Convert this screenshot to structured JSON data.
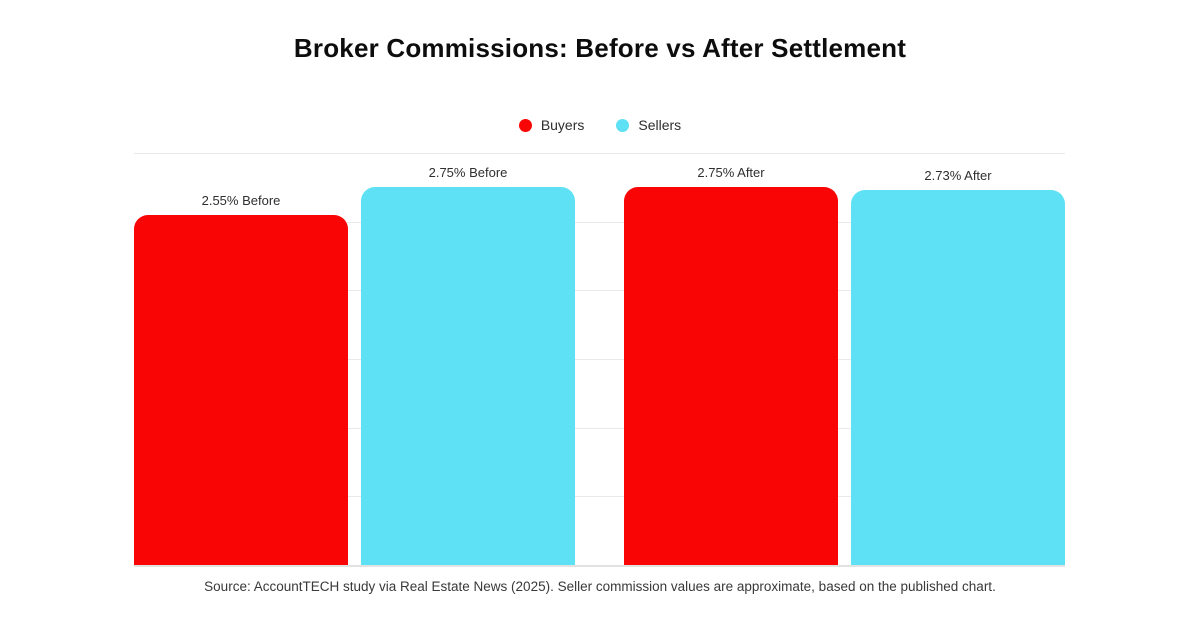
{
  "title": "Broker Commissions: Before vs After Settlement",
  "source_note": "Source: AccountTECH study via Real Estate News (2025). Seller commission values are approximate, based on the published chart.",
  "colors": {
    "buyers": "#fa0505",
    "sellers": "#5ee1f4",
    "gridline": "#e9e9e9",
    "baseline": "#e2e2e2",
    "background": "#ffffff"
  },
  "chart_data": {
    "type": "bar",
    "title": "Broker Commissions: Before vs After Settlement",
    "categories": [
      "Before",
      "After"
    ],
    "series": [
      {
        "name": "Buyers",
        "color": "#fa0505",
        "values": [
          2.55,
          2.75
        ]
      },
      {
        "name": "Sellers",
        "color": "#5ee1f4",
        "values": [
          2.75,
          2.73
        ]
      }
    ],
    "bar_labels": [
      "2.55% Before",
      "2.75% Before",
      "2.75% After",
      "2.73% After"
    ],
    "unit": "%",
    "ylim": [
      0,
      3.0
    ],
    "gridline_step": 0.5,
    "grid": "horizontal",
    "axis_tick_labels_visible": false,
    "legend_position": "top-center"
  }
}
